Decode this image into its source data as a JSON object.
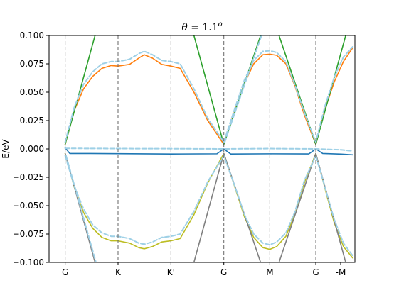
{
  "chart_data": {
    "type": "line",
    "title": "θ = 1.1°",
    "title_parts": {
      "theta": "θ",
      "equals": " = 1.1",
      "degree": "o"
    },
    "xlabel": "",
    "ylabel": "E/eV",
    "ylim": [
      -0.1,
      0.1
    ],
    "xlim": [
      -0.35,
      6.3
    ],
    "yticks": [
      -0.1,
      -0.075,
      -0.05,
      -0.025,
      0.0,
      0.025,
      0.05,
      0.075,
      0.1
    ],
    "ytick_labels": [
      "−0.100",
      "−0.075",
      "−0.050",
      "−0.025",
      "0.000",
      "0.025",
      "0.050",
      "0.075",
      "0.100"
    ],
    "x_points": [
      0,
      1.15,
      2.3,
      3.45,
      4.45,
      5.45,
      6.45
    ],
    "x_point_labels": [
      "G",
      "K",
      "K'",
      "G",
      "M",
      "G",
      "-M"
    ],
    "grid": false,
    "legend": "none",
    "colors": {
      "dirac_line": "#2ca02c",
      "upper_band": "#ff7f0e",
      "flat_band": "#1f77b4",
      "lower_band": "#bcbd22",
      "lower_dirac": "#7f7f7f",
      "reference_dashed": "#9ed0e6",
      "vertical_lines": "#666666"
    },
    "series": [
      {
        "role": "upper-band",
        "color": "#ff7f0e",
        "style": "solid",
        "x": [
          0,
          0.2,
          0.4,
          0.6,
          0.8,
          1.0,
          1.15,
          1.4,
          1.6,
          1.72,
          1.9,
          2.1,
          2.3,
          2.5,
          2.8,
          3.1,
          3.45,
          3.7,
          3.9,
          4.1,
          4.3,
          4.45,
          4.6,
          4.8,
          5.0,
          5.2,
          5.45,
          5.65,
          5.85,
          6.05,
          6.25
        ],
        "y": [
          0.004,
          0.034,
          0.053,
          0.064,
          0.071,
          0.0735,
          0.073,
          0.0745,
          0.08,
          0.083,
          0.08,
          0.0745,
          0.073,
          0.071,
          0.05,
          0.025,
          0.004,
          0.035,
          0.058,
          0.075,
          0.083,
          0.0835,
          0.0825,
          0.075,
          0.055,
          0.03,
          0.004,
          0.035,
          0.059,
          0.077,
          0.089
        ]
      },
      {
        "role": "dirac-upper-1",
        "color": "#2ca02c",
        "style": "solid",
        "x": [
          0,
          0.65
        ],
        "y": [
          0.004,
          0.1
        ]
      },
      {
        "role": "dirac-upper-2",
        "color": "#2ca02c",
        "style": "solid",
        "x": [
          2.8,
          3.45,
          4.25
        ],
        "y": [
          0.1,
          0.004,
          0.1
        ]
      },
      {
        "role": "dirac-upper-3",
        "color": "#2ca02c",
        "style": "solid",
        "x": [
          4.65,
          5.45,
          6.1
        ],
        "y": [
          0.1,
          0.004,
          0.1
        ]
      },
      {
        "role": "flat-band",
        "color": "#1f77b4",
        "style": "solid",
        "x": [
          0,
          0.1,
          0.4,
          1.15,
          2.3,
          3.3,
          3.45,
          3.6,
          4.45,
          5.3,
          5.45,
          5.6,
          6.0,
          6.25
        ],
        "y": [
          0.001,
          -0.004,
          -0.004,
          -0.0042,
          -0.0045,
          -0.0043,
          0.0,
          -0.0045,
          -0.0043,
          -0.0044,
          0.0,
          -0.004,
          -0.0046,
          -0.0052
        ]
      },
      {
        "role": "flat-band-ref",
        "color": "#9ed0e6",
        "style": "dashed",
        "x": [
          0,
          1.15,
          2.3,
          3.45,
          4.45,
          5.45,
          6.0,
          6.25
        ],
        "y": [
          0.0005,
          0.0003,
          0.0002,
          0.0,
          0.0003,
          0.0,
          -0.0008,
          -0.0018
        ]
      },
      {
        "role": "lower-band",
        "color": "#bcbd22",
        "style": "solid",
        "x": [
          0,
          0.2,
          0.4,
          0.6,
          0.8,
          1.0,
          1.15,
          1.4,
          1.6,
          1.72,
          1.9,
          2.1,
          2.3,
          2.5,
          2.8,
          3.1,
          3.45,
          3.7,
          3.9,
          4.1,
          4.3,
          4.45,
          4.6,
          4.8,
          5.0,
          5.2,
          5.45,
          5.65,
          5.85,
          6.05,
          6.25
        ],
        "y": [
          -0.004,
          -0.034,
          -0.056,
          -0.07,
          -0.078,
          -0.081,
          -0.081,
          -0.083,
          -0.087,
          -0.088,
          -0.086,
          -0.082,
          -0.081,
          -0.079,
          -0.058,
          -0.03,
          -0.004,
          -0.035,
          -0.06,
          -0.078,
          -0.087,
          -0.0885,
          -0.086,
          -0.077,
          -0.057,
          -0.03,
          -0.004,
          -0.035,
          -0.065,
          -0.086,
          -0.096
        ]
      },
      {
        "role": "dirac-lower-1",
        "color": "#7f7f7f",
        "style": "solid",
        "x": [
          0,
          0.65
        ],
        "y": [
          -0.004,
          -0.1
        ]
      },
      {
        "role": "dirac-lower-2",
        "color": "#7f7f7f",
        "style": "solid",
        "x": [
          2.8,
          3.45,
          4.25
        ],
        "y": [
          -0.1,
          -0.004,
          -0.1
        ]
      },
      {
        "role": "dirac-lower-3",
        "color": "#7f7f7f",
        "style": "solid",
        "x": [
          4.65,
          5.45,
          6.1
        ],
        "y": [
          -0.1,
          -0.004,
          -0.1
        ]
      },
      {
        "role": "upper-band-ref",
        "color": "#9ed0e6",
        "style": "dashed",
        "x": [
          0,
          0.2,
          0.4,
          0.6,
          0.8,
          1.0,
          1.15,
          1.4,
          1.6,
          1.72,
          1.9,
          2.1,
          2.3,
          2.5,
          2.8,
          3.1,
          3.45,
          3.7,
          3.9,
          4.1,
          4.3,
          4.45,
          4.6,
          4.8,
          5.0,
          5.2,
          5.45,
          5.65,
          5.85,
          6.05,
          6.25
        ],
        "y": [
          0.006,
          0.037,
          0.057,
          0.068,
          0.075,
          0.077,
          0.077,
          0.079,
          0.084,
          0.086,
          0.083,
          0.078,
          0.077,
          0.075,
          0.053,
          0.027,
          0.006,
          0.037,
          0.061,
          0.078,
          0.086,
          0.0865,
          0.085,
          0.077,
          0.056,
          0.032,
          0.006,
          0.038,
          0.063,
          0.081,
          0.09
        ]
      },
      {
        "role": "lower-band-ref",
        "color": "#9ed0e6",
        "style": "dashed",
        "x": [
          0,
          0.2,
          0.4,
          0.6,
          0.8,
          1.0,
          1.15,
          1.4,
          1.6,
          1.72,
          1.9,
          2.1,
          2.3,
          2.5,
          2.8,
          3.1,
          3.45,
          3.7,
          3.9,
          4.1,
          4.3,
          4.45,
          4.6,
          4.8,
          5.0,
          5.2,
          5.45,
          5.65,
          5.85,
          6.05,
          6.25
        ],
        "y": [
          -0.006,
          -0.033,
          -0.053,
          -0.067,
          -0.074,
          -0.077,
          -0.077,
          -0.079,
          -0.083,
          -0.084,
          -0.082,
          -0.078,
          -0.077,
          -0.075,
          -0.055,
          -0.029,
          -0.006,
          -0.034,
          -0.058,
          -0.075,
          -0.083,
          -0.0845,
          -0.082,
          -0.074,
          -0.055,
          -0.028,
          -0.006,
          -0.034,
          -0.062,
          -0.083,
          -0.094
        ]
      },
      {
        "role": "dirac-upper-ref",
        "color": "#9ed0e6",
        "style": "dashed",
        "x": [
          3.47,
          4.27
        ],
        "y": [
          0.006,
          0.1
        ]
      },
      {
        "role": "dirac-lower-ref",
        "color": "#9ed0e6",
        "style": "dashed",
        "x": [
          0.02,
          0.67
        ],
        "y": [
          -0.006,
          -0.1
        ]
      }
    ]
  }
}
